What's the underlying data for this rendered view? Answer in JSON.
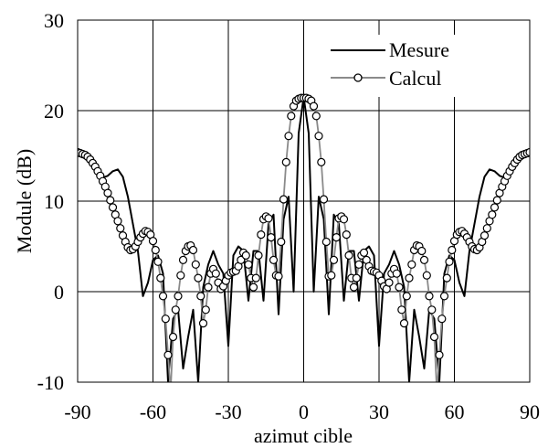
{
  "chart_data": {
    "type": "line",
    "xlabel": "azimut cible",
    "ylabel": "Module (dB)",
    "xlim": [
      -90,
      90
    ],
    "ylim": [
      -10,
      30
    ],
    "x_ticks": [
      -90,
      -60,
      -30,
      0,
      30,
      60,
      90
    ],
    "y_ticks": [
      -10,
      0,
      10,
      20,
      30
    ],
    "x_tick_labels": [
      "-90",
      "-60",
      "-30",
      "0",
      "30",
      "60",
      "90"
    ],
    "y_tick_labels": [
      "-10",
      "0",
      "10",
      "20",
      "30"
    ],
    "grid": true,
    "legend_position": "top-right",
    "series": [
      {
        "name": "Mesure",
        "color": "#000000",
        "marker": "none",
        "points": [
          [
            -90,
            15.5
          ],
          [
            -88,
            15.3
          ],
          [
            -86,
            15.0
          ],
          [
            -84,
            14.4
          ],
          [
            -82,
            13.6
          ],
          [
            -80,
            12.6
          ],
          [
            -78,
            12.8
          ],
          [
            -76,
            13.3
          ],
          [
            -74,
            13.5
          ],
          [
            -72,
            12.7
          ],
          [
            -70,
            10.5
          ],
          [
            -68,
            7.5
          ],
          [
            -66,
            4.5
          ],
          [
            -64,
            -0.5
          ],
          [
            -62,
            1.0
          ],
          [
            -60,
            3.5
          ],
          [
            -58,
            4.0
          ],
          [
            -56,
            2.0
          ],
          [
            -54,
            -10.0
          ],
          [
            -52,
            -3.0
          ],
          [
            -50,
            -2.0
          ],
          [
            -48,
            -8.5
          ],
          [
            -46,
            -5.0
          ],
          [
            -44,
            -2.0
          ],
          [
            -42,
            -10.0
          ],
          [
            -40,
            0.5
          ],
          [
            -38,
            3.0
          ],
          [
            -36,
            4.5
          ],
          [
            -34,
            3.0
          ],
          [
            -32,
            2.0
          ],
          [
            -30,
            -6.0
          ],
          [
            -28,
            4.0
          ],
          [
            -26,
            5.0
          ],
          [
            -24,
            4.5
          ],
          [
            -22,
            -1.0
          ],
          [
            -20,
            4.5
          ],
          [
            -18,
            4.5
          ],
          [
            -16,
            -1.0
          ],
          [
            -14,
            7.5
          ],
          [
            -12,
            8.5
          ],
          [
            -10,
            -2.5
          ],
          [
            -8,
            8.0
          ],
          [
            -6,
            10.5
          ],
          [
            -4,
            0.0
          ],
          [
            -2,
            17.5
          ],
          [
            0,
            21.5
          ],
          [
            2,
            17.5
          ],
          [
            4,
            0.0
          ],
          [
            6,
            10.5
          ],
          [
            8,
            8.0
          ],
          [
            10,
            -2.5
          ],
          [
            12,
            8.5
          ],
          [
            14,
            7.5
          ],
          [
            16,
            -1.0
          ],
          [
            18,
            4.5
          ],
          [
            20,
            4.5
          ],
          [
            22,
            -1.0
          ],
          [
            24,
            4.5
          ],
          [
            26,
            5.0
          ],
          [
            28,
            4.0
          ],
          [
            30,
            -6.0
          ],
          [
            32,
            2.0
          ],
          [
            34,
            3.0
          ],
          [
            36,
            4.5
          ],
          [
            38,
            3.0
          ],
          [
            40,
            0.5
          ],
          [
            42,
            -10.0
          ],
          [
            44,
            -2.0
          ],
          [
            46,
            -5.0
          ],
          [
            48,
            -8.5
          ],
          [
            50,
            -2.0
          ],
          [
            52,
            -3.0
          ],
          [
            54,
            -10.0
          ],
          [
            56,
            2.0
          ],
          [
            58,
            4.0
          ],
          [
            60,
            3.5
          ],
          [
            62,
            1.0
          ],
          [
            64,
            -0.5
          ],
          [
            66,
            4.5
          ],
          [
            68,
            7.5
          ],
          [
            70,
            10.5
          ],
          [
            72,
            12.7
          ],
          [
            74,
            13.5
          ],
          [
            76,
            13.3
          ],
          [
            78,
            12.8
          ],
          [
            80,
            12.6
          ],
          [
            82,
            13.6
          ],
          [
            84,
            14.4
          ],
          [
            86,
            15.0
          ],
          [
            88,
            15.3
          ],
          [
            90,
            15.5
          ]
        ]
      },
      {
        "name": "Calcul",
        "color": "#8a8a8a",
        "marker": "circle",
        "points": [
          [
            -90,
            15.4
          ],
          [
            -89,
            15.3
          ],
          [
            -88,
            15.2
          ],
          [
            -87,
            15.1
          ],
          [
            -86,
            14.9
          ],
          [
            -85,
            14.6
          ],
          [
            -84,
            14.2
          ],
          [
            -83,
            13.8
          ],
          [
            -82,
            13.3
          ],
          [
            -81,
            12.8
          ],
          [
            -80,
            12.2
          ],
          [
            -79,
            11.6
          ],
          [
            -78,
            10.9
          ],
          [
            -77,
            10.1
          ],
          [
            -76,
            9.3
          ],
          [
            -75,
            8.5
          ],
          [
            -74,
            7.8
          ],
          [
            -73,
            7.0
          ],
          [
            -72,
            6.2
          ],
          [
            -71,
            5.5
          ],
          [
            -70,
            4.9
          ],
          [
            -69,
            4.6
          ],
          [
            -68,
            4.7
          ],
          [
            -67,
            5.0
          ],
          [
            -66,
            5.5
          ],
          [
            -65,
            6.0
          ],
          [
            -64,
            6.4
          ],
          [
            -63,
            6.7
          ],
          [
            -62,
            6.6
          ],
          [
            -61,
            6.3
          ],
          [
            -60,
            5.6
          ],
          [
            -59,
            4.6
          ],
          [
            -58,
            3.3
          ],
          [
            -57,
            1.5
          ],
          [
            -56,
            -0.5
          ],
          [
            -55,
            -3.0
          ],
          [
            -54,
            -7.0
          ],
          [
            -53,
            -11.0
          ],
          [
            -52,
            -5.0
          ],
          [
            -51,
            -2.0
          ],
          [
            -50,
            -0.5
          ],
          [
            -49,
            1.8
          ],
          [
            -48,
            3.5
          ],
          [
            -47,
            4.5
          ],
          [
            -46,
            5.0
          ],
          [
            -45,
            5.1
          ],
          [
            -44,
            4.6
          ],
          [
            -43,
            3.0
          ],
          [
            -42,
            1.5
          ],
          [
            -41,
            -0.5
          ],
          [
            -40,
            -3.5
          ],
          [
            -39,
            -2.0
          ],
          [
            -38,
            0.5
          ],
          [
            -37,
            2.0
          ],
          [
            -36,
            2.5
          ],
          [
            -35,
            2.0
          ],
          [
            -34,
            1.0
          ],
          [
            -33,
            0.3
          ],
          [
            -32,
            0.6
          ],
          [
            -31,
            1.2
          ],
          [
            -30,
            1.8
          ],
          [
            -29,
            2.1
          ],
          [
            -28,
            2.2
          ],
          [
            -27,
            2.3
          ],
          [
            -26,
            2.8
          ],
          [
            -25,
            3.5
          ],
          [
            -24,
            4.3
          ],
          [
            -23,
            4.0
          ],
          [
            -22,
            3.0
          ],
          [
            -21,
            1.5
          ],
          [
            -20,
            0.5
          ],
          [
            -19,
            1.5
          ],
          [
            -18,
            4.0
          ],
          [
            -17,
            6.3
          ],
          [
            -16,
            8.0
          ],
          [
            -15,
            8.3
          ],
          [
            -14,
            8.1
          ],
          [
            -13,
            6.0
          ],
          [
            -12,
            3.5
          ],
          [
            -11,
            1.8
          ],
          [
            -10,
            1.7
          ],
          [
            -9,
            5.5
          ],
          [
            -8,
            10.2
          ],
          [
            -7,
            14.3
          ],
          [
            -6,
            17.2
          ],
          [
            -5,
            19.4
          ],
          [
            -4,
            20.5
          ],
          [
            -3,
            21.1
          ],
          [
            -2,
            21.3
          ],
          [
            -1,
            21.4
          ],
          [
            0,
            21.4
          ],
          [
            1,
            21.4
          ],
          [
            2,
            21.3
          ],
          [
            3,
            21.1
          ],
          [
            4,
            20.5
          ],
          [
            5,
            19.4
          ],
          [
            6,
            17.2
          ],
          [
            7,
            14.3
          ],
          [
            8,
            10.2
          ],
          [
            9,
            5.5
          ],
          [
            10,
            1.7
          ],
          [
            11,
            1.8
          ],
          [
            12,
            3.5
          ],
          [
            13,
            6.0
          ],
          [
            14,
            8.1
          ],
          [
            15,
            8.3
          ],
          [
            16,
            8.0
          ],
          [
            17,
            6.3
          ],
          [
            18,
            4.0
          ],
          [
            19,
            1.5
          ],
          [
            20,
            0.5
          ],
          [
            21,
            1.5
          ],
          [
            22,
            3.0
          ],
          [
            23,
            4.0
          ],
          [
            24,
            4.3
          ],
          [
            25,
            3.5
          ],
          [
            26,
            2.8
          ],
          [
            27,
            2.3
          ],
          [
            28,
            2.2
          ],
          [
            29,
            2.1
          ],
          [
            30,
            1.8
          ],
          [
            31,
            1.2
          ],
          [
            32,
            0.6
          ],
          [
            33,
            0.3
          ],
          [
            34,
            1.0
          ],
          [
            35,
            2.0
          ],
          [
            36,
            2.5
          ],
          [
            37,
            2.0
          ],
          [
            38,
            0.5
          ],
          [
            39,
            -2.0
          ],
          [
            40,
            -3.5
          ],
          [
            41,
            -0.5
          ],
          [
            42,
            1.5
          ],
          [
            43,
            3.0
          ],
          [
            44,
            4.6
          ],
          [
            45,
            5.1
          ],
          [
            46,
            5.0
          ],
          [
            47,
            4.5
          ],
          [
            48,
            3.5
          ],
          [
            49,
            1.8
          ],
          [
            50,
            -0.5
          ],
          [
            51,
            -2.0
          ],
          [
            52,
            -5.0
          ],
          [
            53,
            -11.0
          ],
          [
            54,
            -7.0
          ],
          [
            55,
            -3.0
          ],
          [
            56,
            -0.5
          ],
          [
            57,
            1.5
          ],
          [
            58,
            3.3
          ],
          [
            59,
            4.6
          ],
          [
            60,
            5.6
          ],
          [
            61,
            6.3
          ],
          [
            62,
            6.6
          ],
          [
            63,
            6.7
          ],
          [
            64,
            6.4
          ],
          [
            65,
            6.0
          ],
          [
            66,
            5.5
          ],
          [
            67,
            5.0
          ],
          [
            68,
            4.7
          ],
          [
            69,
            4.6
          ],
          [
            70,
            4.9
          ],
          [
            71,
            5.5
          ],
          [
            72,
            6.2
          ],
          [
            73,
            7.0
          ],
          [
            74,
            7.8
          ],
          [
            75,
            8.5
          ],
          [
            76,
            9.3
          ],
          [
            77,
            10.1
          ],
          [
            78,
            10.9
          ],
          [
            79,
            11.6
          ],
          [
            80,
            12.2
          ],
          [
            81,
            12.8
          ],
          [
            82,
            13.3
          ],
          [
            83,
            13.8
          ],
          [
            84,
            14.2
          ],
          [
            85,
            14.6
          ],
          [
            86,
            14.9
          ],
          [
            87,
            15.1
          ],
          [
            88,
            15.2
          ],
          [
            89,
            15.3
          ],
          [
            90,
            15.4
          ]
        ]
      }
    ]
  }
}
